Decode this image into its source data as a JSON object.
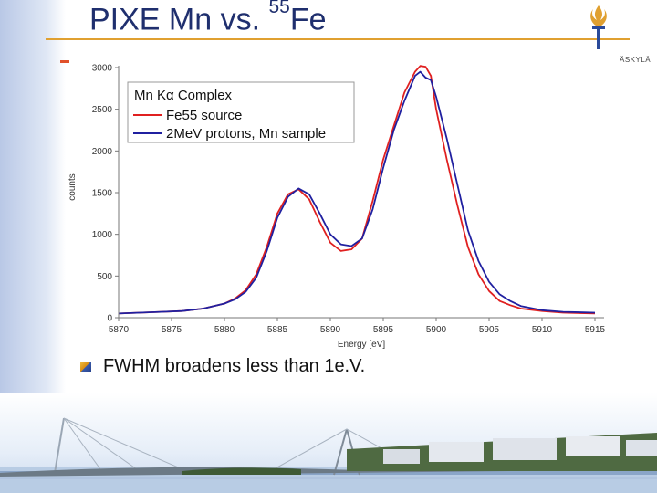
{
  "slide": {
    "title_main": "PIXE Mn vs. ",
    "title_superscript": "55",
    "title_tail": "Fe",
    "bullet": "FWHM broadens less than 1e.V.",
    "logo_text": "ÄSKYLÄ"
  },
  "colors": {
    "title": "#1f2f6e",
    "rule": "#e0a030",
    "red_series": "#e02020",
    "blue_series": "#2020a0"
  },
  "chart_data": {
    "type": "line",
    "title": "",
    "xlabel": "Energy [eV]",
    "ylabel": "counts",
    "xlim": [
      5870,
      5915
    ],
    "ylim": [
      0,
      3000
    ],
    "xticks": [
      5870,
      5875,
      5880,
      5885,
      5890,
      5895,
      5900,
      5905,
      5910,
      5915
    ],
    "yticks": [
      0,
      500,
      1000,
      1500,
      2000,
      2500,
      3000
    ],
    "legend_title": "Mn Kα Complex",
    "legend_position": "top-left",
    "series": [
      {
        "name": "Fe55 source",
        "color": "#e02020",
        "x": [
          5870,
          5872,
          5874,
          5876,
          5878,
          5880,
          5881,
          5882,
          5883,
          5884,
          5885,
          5886,
          5887,
          5888,
          5889,
          5890,
          5891,
          5892,
          5893,
          5894,
          5895,
          5896,
          5897,
          5898,
          5898.5,
          5899,
          5899.5,
          5900,
          5901,
          5902,
          5903,
          5904,
          5905,
          5906,
          5907,
          5908,
          5910,
          5912,
          5915
        ],
        "y": [
          50,
          60,
          70,
          80,
          110,
          170,
          230,
          330,
          520,
          850,
          1250,
          1480,
          1540,
          1420,
          1150,
          900,
          800,
          820,
          950,
          1400,
          1900,
          2300,
          2700,
          2950,
          3020,
          3010,
          2900,
          2500,
          1900,
          1350,
          850,
          520,
          320,
          200,
          150,
          110,
          80,
          60,
          50
        ]
      },
      {
        "name": "2MeV protons, Mn sample",
        "color": "#2020a0",
        "x": [
          5870,
          5872,
          5874,
          5876,
          5878,
          5880,
          5881,
          5882,
          5883,
          5884,
          5885,
          5886,
          5887,
          5888,
          5889,
          5890,
          5891,
          5892,
          5893,
          5894,
          5895,
          5896,
          5897,
          5898,
          5898.5,
          5899,
          5899.5,
          5900,
          5901,
          5902,
          5903,
          5904,
          5905,
          5906,
          5907,
          5908,
          5910,
          5912,
          5915
        ],
        "y": [
          50,
          60,
          70,
          80,
          110,
          170,
          220,
          310,
          480,
          800,
          1200,
          1450,
          1550,
          1480,
          1250,
          1000,
          880,
          860,
          950,
          1300,
          1800,
          2250,
          2600,
          2900,
          2950,
          2880,
          2850,
          2650,
          2150,
          1600,
          1050,
          680,
          430,
          280,
          200,
          140,
          90,
          70,
          60
        ]
      }
    ]
  }
}
